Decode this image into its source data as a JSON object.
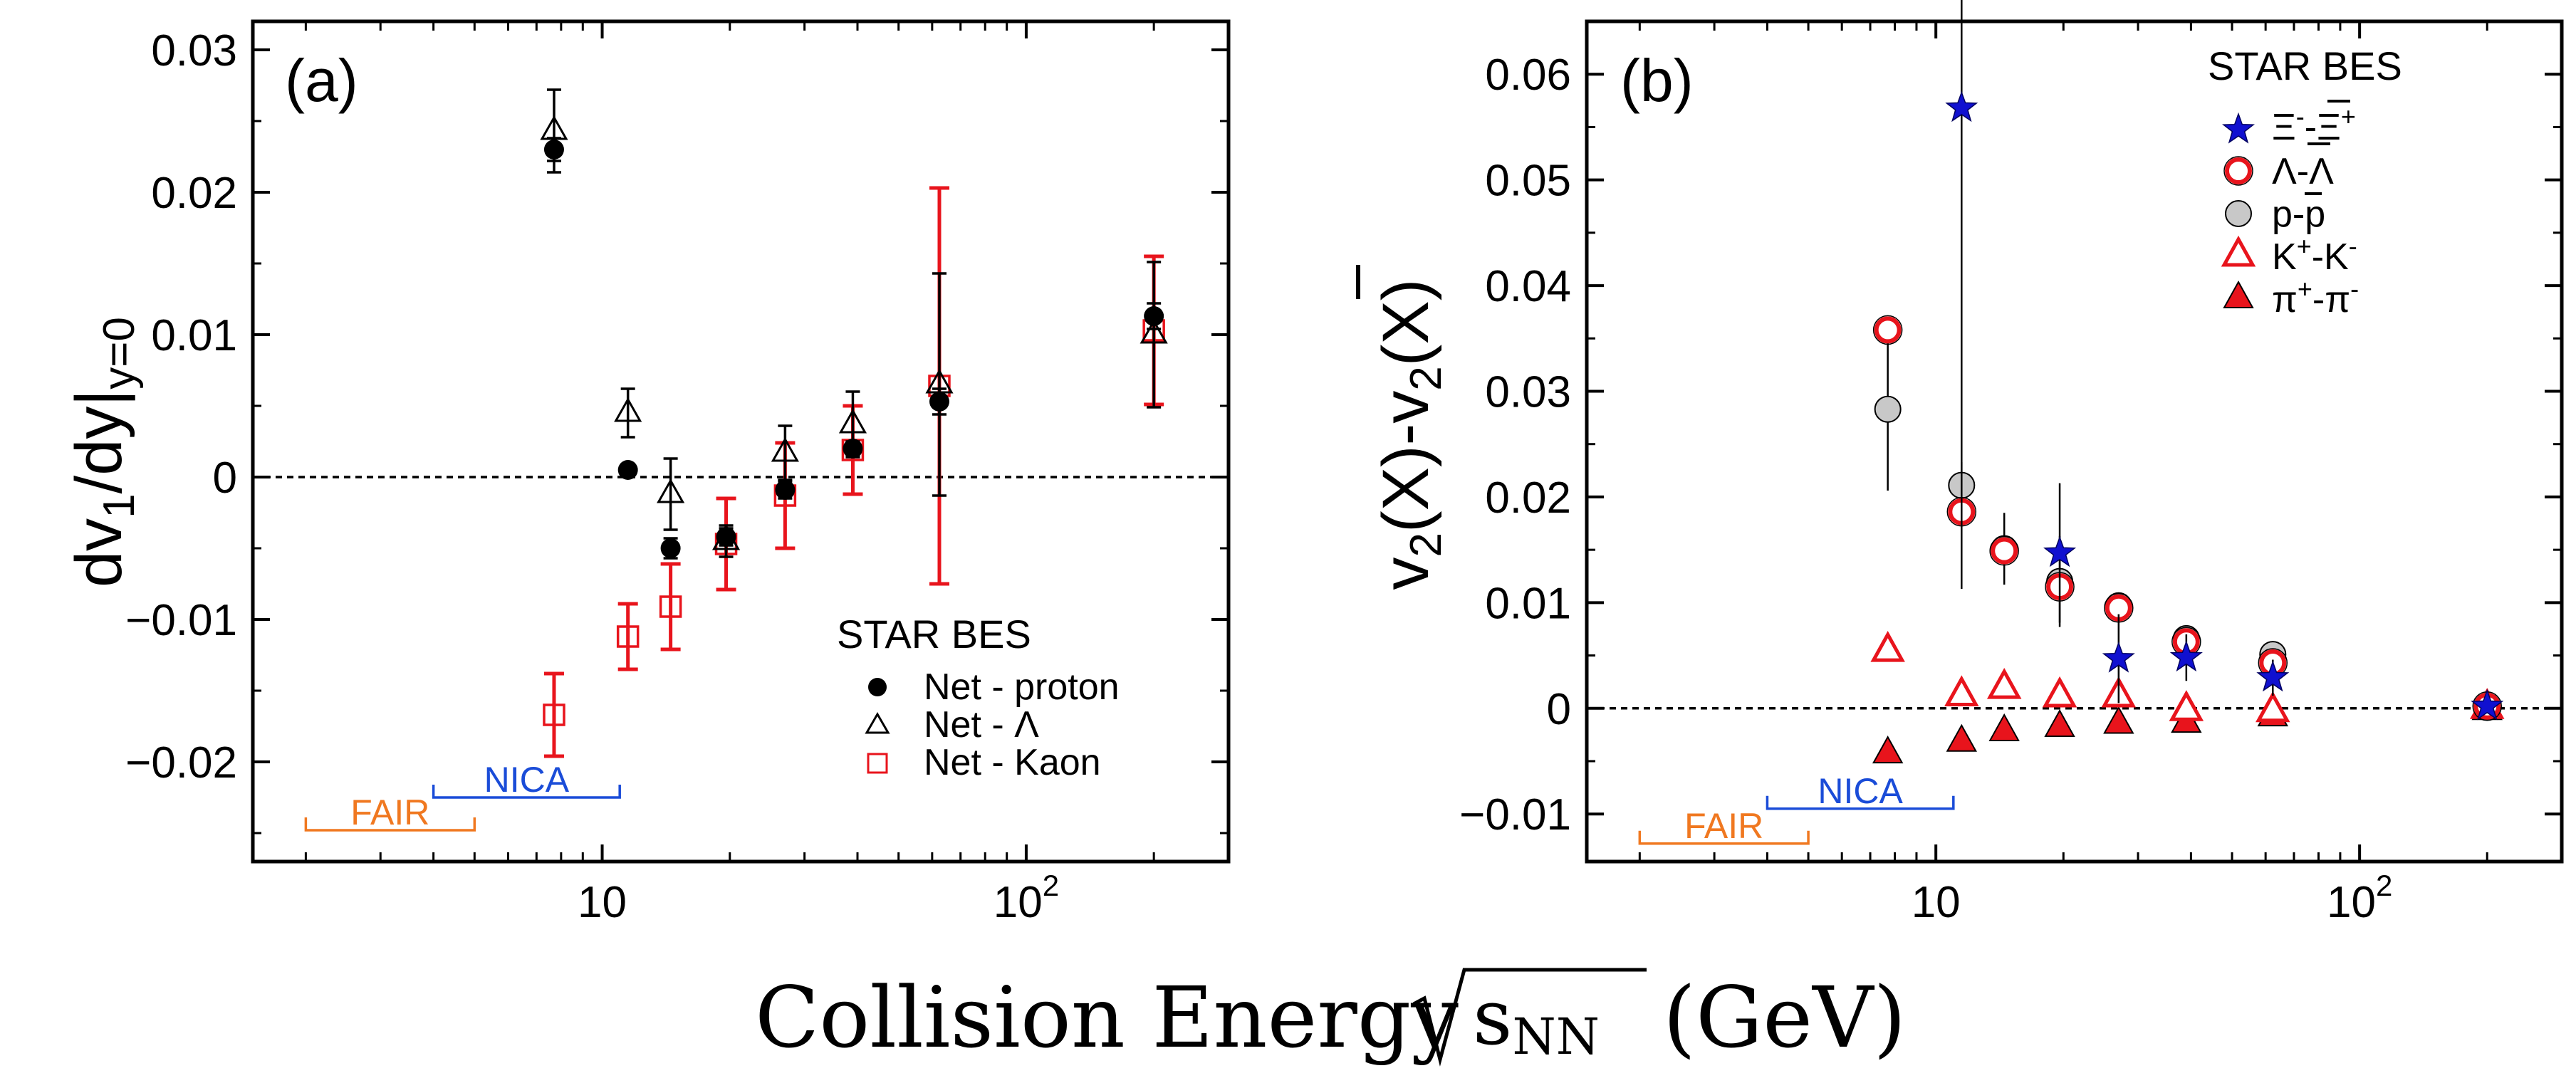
{
  "x_title": {
    "main": "Collision Energy",
    "sqrt_arg": "s",
    "sqrt_sub": "NN",
    "unit": "(GeV)"
  },
  "colors": {
    "black": "#000000",
    "red": "#e8141c",
    "blue": "#1010d0",
    "grey": "#c8c8c8",
    "fair": "#f07820",
    "nica": "#1a4cd8"
  },
  "chart_data": [
    {
      "panel": "a",
      "type": "scatter",
      "panel_label": "(a)",
      "xscale": "log",
      "xlim": [
        1.5,
        300
      ],
      "ylim": [
        -0.027,
        0.032
      ],
      "xticks": [
        {
          "v": 10,
          "base": "10",
          "exp": ""
        },
        {
          "v": 100,
          "base": "10",
          "exp": "2"
        }
      ],
      "yticks": [
        {
          "v": 0.03,
          "label": "0.03"
        },
        {
          "v": 0.02,
          "label": "0.02"
        },
        {
          "v": 0.01,
          "label": "0.01"
        },
        {
          "v": 0,
          "label": "0"
        },
        {
          "v": -0.01,
          "label": "−0.01"
        },
        {
          "v": -0.02,
          "label": "−0.02"
        }
      ],
      "ylabel": {
        "main": "dv",
        "sub1": "1",
        "mid": "/dy|",
        "sub2": "y=0"
      },
      "zero_line": true,
      "legend": {
        "title": "STAR BES",
        "position": "bottom-right"
      },
      "facilities": [
        {
          "name": "FAIR",
          "xmin": 2,
          "xmax": 5,
          "level": -0.0248,
          "color": "#f07820"
        },
        {
          "name": "NICA",
          "xmin": 4,
          "xmax": 11,
          "level": -0.0225,
          "color": "#1a4cd8"
        }
      ],
      "series": [
        {
          "name": "Net - proton",
          "marker": "circle-filled",
          "color": "#000000",
          "points": [
            {
              "x": 7.7,
              "y": 0.023,
              "err": 0.0008
            },
            {
              "x": 11.5,
              "y": 0.0005,
              "err": 0.0002
            },
            {
              "x": 14.5,
              "y": -0.005,
              "err": 0.0007
            },
            {
              "x": 19.6,
              "y": -0.0042,
              "err": 0.0006
            },
            {
              "x": 27,
              "y": -0.0009,
              "err": 0.0006
            },
            {
              "x": 39,
              "y": 0.002,
              "err": 0.0005
            },
            {
              "x": 62.4,
              "y": 0.0053,
              "err": 0.0009
            },
            {
              "x": 200,
              "y": 0.0113,
              "err": 0.0009
            }
          ]
        },
        {
          "name": "Net - Λ",
          "marker": "triangle-open",
          "color": "#000000",
          "points": [
            {
              "x": 7.7,
              "y": 0.0243,
              "err": 0.0029
            },
            {
              "x": 11.5,
              "y": 0.0045,
              "err": 0.0017
            },
            {
              "x": 14.5,
              "y": -0.0012,
              "err": 0.0025
            },
            {
              "x": 19.6,
              "y": -0.0045,
              "err": 0.0011
            },
            {
              "x": 27,
              "y": 0.0017,
              "err": 0.0019
            },
            {
              "x": 39,
              "y": 0.0037,
              "err": 0.0023
            },
            {
              "x": 62.4,
              "y": 0.0065,
              "err": 0.0078
            },
            {
              "x": 200,
              "y": 0.01,
              "err": 0.0051
            }
          ]
        },
        {
          "name": "Net - Kaon",
          "marker": "square-open",
          "color": "#e8141c",
          "points": [
            {
              "x": 7.7,
              "y": -0.0167,
              "err": 0.0029
            },
            {
              "x": 11.5,
              "y": -0.0112,
              "err": 0.0023
            },
            {
              "x": 14.5,
              "y": -0.0091,
              "err": 0.003
            },
            {
              "x": 19.6,
              "y": -0.0047,
              "err": 0.0032
            },
            {
              "x": 27,
              "y": -0.0013,
              "err": 0.0037
            },
            {
              "x": 39,
              "y": 0.0019,
              "err": 0.0031
            },
            {
              "x": 62.4,
              "y": 0.0064,
              "err": 0.0139
            },
            {
              "x": 200,
              "y": 0.0103,
              "err": 0.0052
            }
          ]
        }
      ]
    },
    {
      "panel": "b",
      "type": "scatter",
      "panel_label": "(b)",
      "xscale": "log",
      "xlim": [
        1.5,
        300
      ],
      "ylim": [
        -0.0145,
        0.065
      ],
      "xticks": [
        {
          "v": 10,
          "base": "10",
          "exp": ""
        },
        {
          "v": 100,
          "base": "10",
          "exp": "2"
        }
      ],
      "yticks": [
        {
          "v": 0.06,
          "label": "0.06"
        },
        {
          "v": 0.05,
          "label": "0.05"
        },
        {
          "v": 0.04,
          "label": "0.04"
        },
        {
          "v": 0.03,
          "label": "0.03"
        },
        {
          "v": 0.02,
          "label": "0.02"
        },
        {
          "v": 0.01,
          "label": "0.01"
        },
        {
          "v": 0,
          "label": "0"
        },
        {
          "v": -0.01,
          "label": "−0.01"
        }
      ],
      "ylabel": {
        "a": "v",
        "a_sub": "2",
        "b": "(X)-v",
        "b_sub": "2",
        "c": "(X)"
      },
      "zero_line": true,
      "legend": {
        "title": "STAR BES",
        "position": "top-right"
      },
      "facilities": [
        {
          "name": "FAIR",
          "xmin": 2,
          "xmax": 5,
          "level": -0.0128,
          "color": "#f07820"
        },
        {
          "name": "NICA",
          "xmin": 4,
          "xmax": 11,
          "level": -0.0095,
          "color": "#1a4cd8"
        }
      ],
      "series": [
        {
          "name": "Ξ⁻-Ξ̅⁺",
          "marker": "star",
          "color": "#1010d0",
          "label": {
            "a": "Ξ",
            "a_sup": "-",
            "sep": "-",
            "b": "Ξ",
            "b_sup": "+"
          },
          "points": [
            {
              "x": 11.5,
              "y": 0.0568,
              "err": 0.0455
            },
            {
              "x": 19.6,
              "y": 0.0147,
              "err": 0.0066
            },
            {
              "x": 27,
              "y": 0.0047,
              "err": 0.0042
            },
            {
              "x": 39,
              "y": 0.0048,
              "err": 0.0022
            },
            {
              "x": 62.4,
              "y": 0.0029,
              "err": 0.0017
            },
            {
              "x": 200,
              "y": 0.0002,
              "err": 0.0004
            }
          ]
        },
        {
          "name": "Λ-Λ̅",
          "marker": "circle-open-red",
          "color": "#e8141c",
          "label": {
            "a": "Λ",
            "sep": "-",
            "b": "Λ"
          },
          "points": [
            {
              "x": 7.7,
              "y": 0.0358,
              "err": 0.0012
            },
            {
              "x": 11.5,
              "y": 0.0186,
              "err": 0.0009
            },
            {
              "x": 14.5,
              "y": 0.0149,
              "err": 0.0008
            },
            {
              "x": 19.6,
              "y": 0.0115,
              "err": 0.0007
            },
            {
              "x": 27,
              "y": 0.0095,
              "err": 0.0005
            },
            {
              "x": 39,
              "y": 0.0063,
              "err": 0.0005
            },
            {
              "x": 62.4,
              "y": 0.0043,
              "err": 0.0005
            },
            {
              "x": 200,
              "y": 0.0002,
              "err": 0.0003
            }
          ]
        },
        {
          "name": "p-p̅",
          "marker": "circle-grey",
          "color": "#c8c8c8",
          "label": {
            "a": "p",
            "sep": "-",
            "b": "p"
          },
          "points": [
            {
              "x": 7.7,
              "y": 0.0283,
              "err": 0.0077
            },
            {
              "x": 11.5,
              "y": 0.0211,
              "err": 0.0022
            },
            {
              "x": 14.5,
              "y": 0.0151,
              "err": 0.0034
            },
            {
              "x": 19.6,
              "y": 0.012,
              "err": 0.0043
            },
            {
              "x": 27,
              "y": 0.0097,
              "err": 0.0008
            },
            {
              "x": 39,
              "y": 0.0066,
              "err": 0.0008
            },
            {
              "x": 62.4,
              "y": 0.0051,
              "err": 0.0006
            },
            {
              "x": 200,
              "y": 0.0002,
              "err": 0.0002
            }
          ]
        },
        {
          "name": "K⁺-K⁻",
          "marker": "triangle-open-red",
          "color": "#e8141c",
          "label": {
            "a": "K",
            "a_sup": "+",
            "sep": "-",
            "b": "K",
            "b_sup": "-"
          },
          "points": [
            {
              "x": 7.7,
              "y": 0.0055,
              "err": 0.0006
            },
            {
              "x": 11.5,
              "y": 0.0013,
              "err": 0.0004
            },
            {
              "x": 14.5,
              "y": 0.002,
              "err": 0.0004
            },
            {
              "x": 19.6,
              "y": 0.0012,
              "err": 0.0003
            },
            {
              "x": 27,
              "y": 0.0012,
              "err": 0.0003
            },
            {
              "x": 39,
              "y": -0.0001,
              "err": 0.0003
            },
            {
              "x": 62.4,
              "y": -0.0002,
              "err": 0.0003
            },
            {
              "x": 200,
              "y": 0.0001,
              "err": 0.0002
            }
          ]
        },
        {
          "name": "π⁺-π⁻",
          "marker": "triangle-filled-red",
          "color": "#e8141c",
          "label": {
            "a": "π",
            "a_sup": "+",
            "sep": "-",
            "b": "π",
            "b_sup": "-"
          },
          "points": [
            {
              "x": 7.7,
              "y": -0.0042,
              "err": 0.0003
            },
            {
              "x": 11.5,
              "y": -0.0031,
              "err": 0.0003
            },
            {
              "x": 14.5,
              "y": -0.0021,
              "err": 0.0002
            },
            {
              "x": 19.6,
              "y": -0.0017,
              "err": 0.0002
            },
            {
              "x": 27,
              "y": -0.0014,
              "err": 0.0002
            },
            {
              "x": 39,
              "y": -0.0013,
              "err": 0.0002
            },
            {
              "x": 62.4,
              "y": -0.0007,
              "err": 0.0002
            },
            {
              "x": 200,
              "y": -0.0001,
              "err": 0.0002
            }
          ]
        }
      ]
    }
  ]
}
